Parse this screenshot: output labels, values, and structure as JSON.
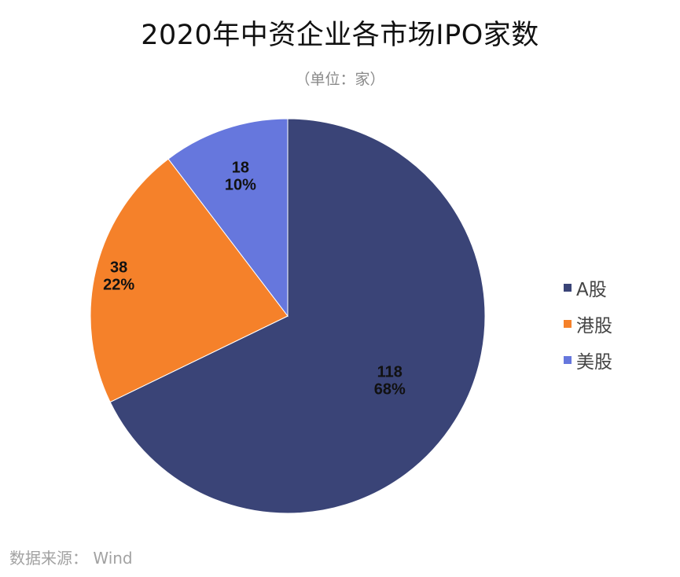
{
  "chart_data": {
    "type": "pie",
    "title": "2020年中资企业各市场IPO家数",
    "subtitle": "（单位：家）",
    "categories": [
      "A股",
      "港股",
      "美股"
    ],
    "values": [
      118,
      38,
      18
    ],
    "percent_labels": [
      "68%",
      "22%",
      "10%"
    ],
    "colors": [
      "#3a4477",
      "#f5812a",
      "#6677dd"
    ],
    "start_angle_deg": 0,
    "direction": "clockwise",
    "legend_position": "right",
    "data_label_color": "#111111"
  },
  "source": "数据来源： Wind"
}
